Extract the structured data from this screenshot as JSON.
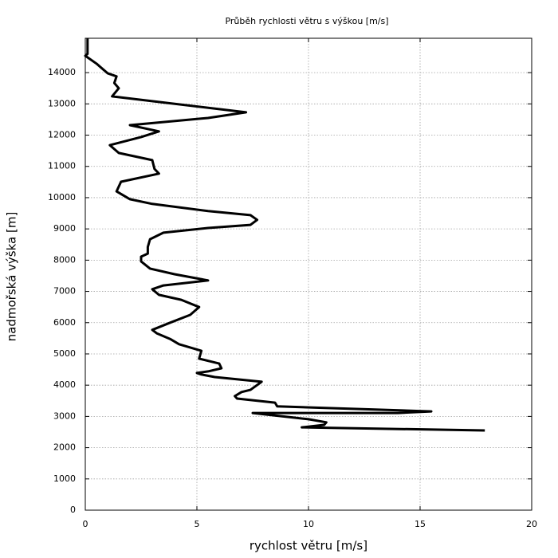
{
  "chart_data": {
    "type": "line",
    "title": "Průběh rychlosti větru s výškou [m/s]",
    "xlabel": "rychlost větru [m/s]",
    "ylabel": "nadmořská výška [m]",
    "color": "#000000",
    "grid": true,
    "xlim": [
      0,
      20
    ],
    "xticks": [
      0,
      5,
      10,
      15,
      20
    ],
    "ylim": [
      0,
      15100
    ],
    "yticks": [
      0,
      1000,
      2000,
      3000,
      4000,
      5000,
      6000,
      7000,
      8000,
      9000,
      10000,
      11000,
      12000,
      13000,
      14000
    ],
    "x": [
      0.1,
      0.1,
      0,
      0.5,
      1.0,
      1.4,
      1.3,
      1.5,
      1.2,
      7.2,
      5.5,
      2.0,
      3.3,
      2.5,
      1.1,
      1.5,
      3.0,
      3.1,
      3.3,
      1.6,
      1.4,
      2.0,
      3.0,
      5.5,
      7.4,
      7.7,
      7.4,
      5.5,
      3.5,
      2.9,
      2.8,
      2.8,
      2.5,
      2.5,
      2.9,
      4.0,
      5.5,
      3.5,
      3.0,
      3.3,
      4.3,
      5.1,
      4.7,
      3.8,
      3.0,
      3.2,
      3.8,
      4.2,
      5.2,
      5.1,
      6.0,
      6.1,
      5.5,
      5.0,
      5.2,
      5.8,
      7.9,
      7.4,
      7.0,
      6.7,
      6.8,
      8.5,
      8.6,
      15.5,
      14.0,
      7.5,
      10.0,
      10.8,
      10.7,
      9.7,
      17.9
    ],
    "values": [
      15100,
      14600,
      14540,
      14290,
      13980,
      13880,
      13670,
      13500,
      13240,
      12730,
      12550,
      12320,
      12120,
      11940,
      11680,
      11430,
      11200,
      10920,
      10770,
      10510,
      10200,
      9950,
      9800,
      9570,
      9440,
      9290,
      9130,
      9030,
      8880,
      8670,
      8420,
      8210,
      8110,
      7960,
      7730,
      7550,
      7350,
      7190,
      7070,
      6890,
      6730,
      6500,
      6250,
      6000,
      5770,
      5660,
      5480,
      5310,
      5100,
      4850,
      4690,
      4540,
      4440,
      4390,
      4340,
      4260,
      4110,
      3850,
      3780,
      3650,
      3570,
      3440,
      3320,
      3160,
      3110,
      3110,
      2910,
      2810,
      2730,
      2650,
      2550
    ]
  }
}
